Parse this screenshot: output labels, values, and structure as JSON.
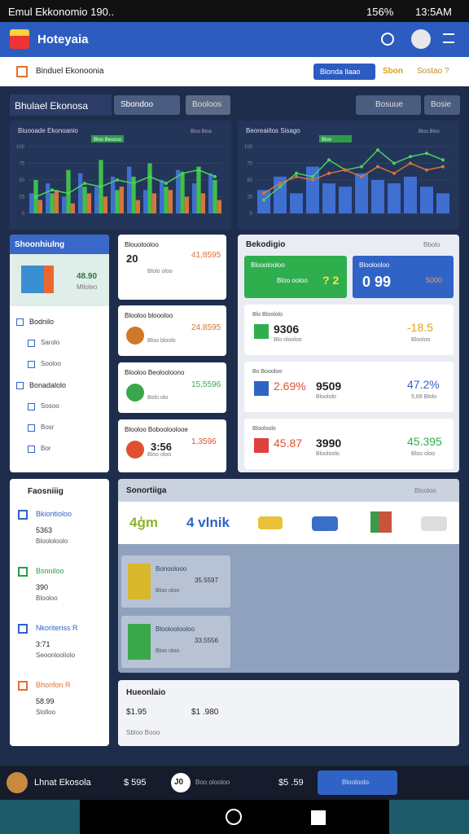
{
  "status": {
    "carrier": "Emul Ekkonomio 190..",
    "battery": "156%",
    "time": "13:5AM"
  },
  "app": {
    "title": "Hoteyaia"
  },
  "breadcrumb": {
    "title": "Binduel Ekonoonia",
    "select": "Blonda llaao",
    "link1": "Sbon",
    "link2": "Sostao ?"
  },
  "toolbar": {
    "title": "Bhulael Ekonosa",
    "button1": "Sbondoo",
    "button2": "Booloos",
    "button3": "Bosuue",
    "button4": "Bosie"
  },
  "charts": [
    {
      "title": "Biuooade Ekonoanio",
      "badge": "Bloo Besono",
      "legend": "Bloo Bloa",
      "ylim": [
        0,
        100
      ],
      "yticks": [
        0,
        25,
        50,
        75,
        100
      ],
      "bars": [
        {
          "color": "#3f6fd1",
          "values": [
            30,
            45,
            25,
            60,
            40,
            55,
            70,
            35,
            50,
            65,
            45,
            60
          ]
        },
        {
          "color": "#3fbf4a",
          "values": [
            50,
            30,
            65,
            40,
            80,
            35,
            55,
            75,
            40,
            60,
            70,
            50
          ]
        },
        {
          "color": "#d9743a",
          "values": [
            20,
            35,
            15,
            30,
            25,
            40,
            20,
            30,
            35,
            25,
            30,
            20
          ]
        }
      ],
      "lines": [
        {
          "color": "#49d35a",
          "values": [
            25,
            35,
            30,
            45,
            40,
            50,
            45,
            55,
            45,
            60,
            65,
            55
          ]
        }
      ]
    },
    {
      "title": "Beoreaiitos Sisago",
      "badge": "Bloo",
      "legend": "Bloo Bloo",
      "ylim": [
        0,
        100
      ],
      "yticks": [
        0,
        25,
        50,
        75,
        100
      ],
      "bars": [
        {
          "color": "#3f6fd1",
          "values": [
            35,
            55,
            30,
            70,
            45,
            40,
            60,
            50,
            45,
            55,
            40,
            30
          ]
        }
      ],
      "lines": [
        {
          "color": "#49d35a",
          "values": [
            20,
            40,
            60,
            55,
            80,
            65,
            70,
            95,
            75,
            85,
            90,
            80
          ]
        },
        {
          "color": "#d9743a",
          "values": [
            30,
            45,
            55,
            50,
            60,
            65,
            55,
            70,
            60,
            75,
            65,
            70
          ]
        }
      ]
    }
  ],
  "sidebar": {
    "title": "Shoonhiulng",
    "image_value": "48.90",
    "image_label": "Mlloleo",
    "items": [
      "Bodnilo",
      "Sarolo",
      "Sooloo",
      "Bonadalolo",
      "Sosoo",
      "Bosr",
      "Bor"
    ]
  },
  "cards": [
    {
      "title": "Blouolooloo",
      "value": "20",
      "sub": "Blolo oloo",
      "right": "41,8595"
    },
    {
      "title": "Blooloo bloooloo",
      "sub": "Bloo bloolo",
      "right": "24.8595"
    },
    {
      "title": "Blooloo Beolooloono",
      "sub": "Bolo olo",
      "right": "15,5596"
    },
    {
      "title": "Blooloo Bobooloolooe",
      "value": "3:56",
      "sub": "Bloo oloo",
      "right": "1,3596"
    }
  ],
  "stats": {
    "title": "Bekodigio",
    "badge": "Bbolo",
    "tile_green": {
      "title": "Blooolooloo",
      "sub": "Bloo ooloo",
      "value": "? 2"
    },
    "tile_blue": {
      "title": "Bloolooloo",
      "value": "0 99",
      "right": "5000"
    },
    "rows": [
      {
        "label": "Blo Bloololo",
        "value": "9306",
        "sub": "Blo olooloo",
        "right": "-18.5",
        "rightsub": "Blooloo"
      },
      {
        "label": "Bo Boooloo",
        "pct": "2.69%",
        "value": "9509",
        "sub": "Bloololo",
        "right": "47.2%",
        "rightsub": "5,89 Blolo"
      },
      {
        "label": "Blooloolo",
        "pct": "45.87",
        "value": "3990",
        "sub": "Blooloolo",
        "right": "45.395",
        "rightsub": "Bloo oloo"
      }
    ]
  },
  "reports": {
    "title": "Faosniiig",
    "items": [
      {
        "label": "Bkiontioloo",
        "value": "5363",
        "sub": "Bloololoolo"
      },
      {
        "label": "Bsnniloo",
        "value": "390",
        "sub": "Blooloo"
      },
      {
        "label": "Nkoriteriss R",
        "value": "3:71",
        "sub": "Seoonlooliolo"
      },
      {
        "label": "Bhonfon R",
        "value": "58.99",
        "sub": "Slolloo"
      }
    ]
  },
  "vehicles": {
    "title": "Sonortiiga",
    "right": "Blooloo",
    "tab1": "4ģm",
    "tab2": "4 vlnik",
    "cards": [
      {
        "label": "Bonoolooo",
        "value": "35.5597",
        "sub": "Bloo oloo"
      },
      {
        "label": "Blooloolooloo",
        "value": "33.5556",
        "sub": "Bloo oloo"
      }
    ]
  },
  "summary": {
    "title": "Hueonlaio",
    "value1": "$1.95",
    "value2": "$1 .980",
    "sub": "Sbloo Booo"
  },
  "bottom": {
    "name": "Lhnat Ekosola",
    "value": "$ 595",
    "badge": "J0",
    "text1": "Boo olooloo",
    "value2": "$5 .59",
    "text2": "Blooloolo"
  }
}
